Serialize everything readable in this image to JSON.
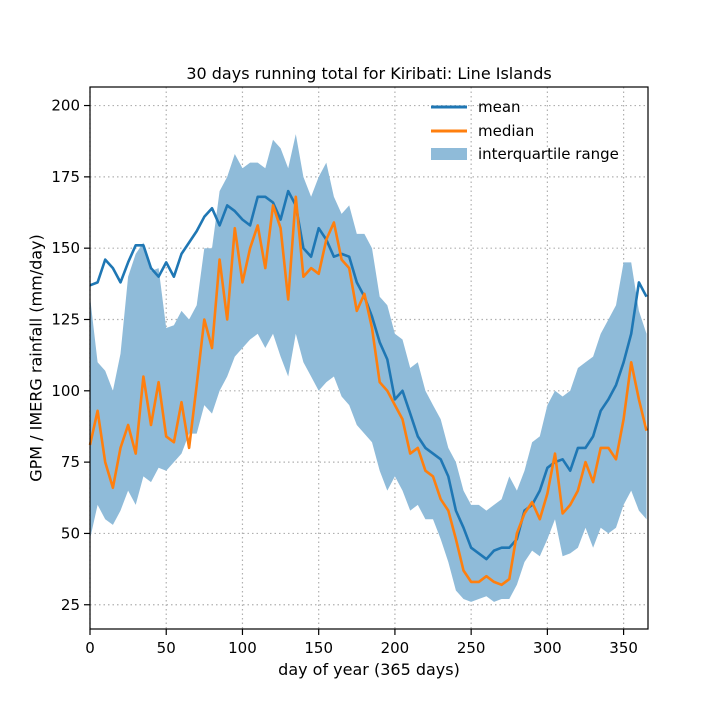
{
  "chart_data": {
    "type": "line",
    "title": "30 days running total for Kiribati: Line Islands",
    "xlabel": "day of year (365 days)",
    "ylabel": "GPM / IMERG rainfall (mm/day)",
    "xlim": [
      0,
      366
    ],
    "ylim": [
      16.5,
      206.5
    ],
    "xticks": [
      0,
      50,
      100,
      150,
      200,
      250,
      300,
      350
    ],
    "yticks": [
      25,
      50,
      75,
      100,
      125,
      150,
      175,
      200
    ],
    "grid": true,
    "legend_position": "top-right",
    "colors": {
      "mean": "#1f77b4",
      "median": "#ff7f0e",
      "iqr": "#8fbbd9"
    },
    "series": [
      {
        "name": "mean",
        "kind": "line",
        "x": [
          0,
          5,
          10,
          15,
          20,
          25,
          30,
          35,
          40,
          45,
          50,
          55,
          60,
          65,
          70,
          75,
          80,
          85,
          90,
          95,
          100,
          105,
          110,
          115,
          120,
          125,
          130,
          135,
          140,
          145,
          150,
          155,
          160,
          165,
          170,
          175,
          180,
          185,
          190,
          195,
          200,
          205,
          210,
          215,
          220,
          225,
          230,
          235,
          240,
          245,
          250,
          255,
          260,
          265,
          270,
          275,
          280,
          285,
          290,
          295,
          300,
          305,
          310,
          315,
          320,
          325,
          330,
          335,
          340,
          345,
          350,
          355,
          360,
          365
        ],
        "values": [
          137,
          138,
          146,
          143,
          138,
          145,
          151,
          151,
          143,
          140,
          145,
          140,
          148,
          152,
          156,
          161,
          164,
          158,
          165,
          163,
          160,
          158,
          168,
          168,
          166,
          160,
          170,
          165,
          150,
          147,
          157,
          153,
          147,
          148,
          147,
          138,
          133,
          126,
          117,
          111,
          97,
          100,
          92,
          84,
          80,
          78,
          76,
          70,
          58,
          52,
          45,
          43,
          41,
          44,
          45,
          45,
          48,
          58,
          60,
          65,
          73,
          75,
          76,
          72,
          80,
          80,
          84,
          93,
          97,
          102,
          110,
          120,
          138,
          133
        ]
      },
      {
        "name": "median",
        "kind": "line",
        "x": [
          0,
          5,
          10,
          15,
          20,
          25,
          30,
          35,
          40,
          45,
          50,
          55,
          60,
          65,
          70,
          75,
          80,
          85,
          90,
          95,
          100,
          105,
          110,
          115,
          120,
          125,
          130,
          135,
          140,
          145,
          150,
          155,
          160,
          165,
          170,
          175,
          180,
          185,
          190,
          195,
          200,
          205,
          210,
          215,
          220,
          225,
          230,
          235,
          240,
          245,
          250,
          255,
          260,
          265,
          270,
          275,
          280,
          285,
          290,
          295,
          300,
          305,
          310,
          315,
          320,
          325,
          330,
          335,
          340,
          345,
          350,
          355,
          360,
          365
        ],
        "values": [
          81,
          93,
          75,
          66,
          80,
          88,
          78,
          105,
          88,
          103,
          84,
          82,
          96,
          80,
          102,
          125,
          115,
          146,
          125,
          157,
          138,
          150,
          158,
          143,
          165,
          157,
          132,
          168,
          140,
          143,
          141,
          153,
          159,
          146,
          143,
          128,
          134,
          122,
          103,
          100,
          95,
          90,
          78,
          80,
          72,
          70,
          62,
          58,
          48,
          37,
          33,
          33,
          35,
          33,
          32,
          34,
          50,
          57,
          61,
          55,
          64,
          78,
          57,
          60,
          65,
          75,
          68,
          80,
          80,
          76,
          90,
          110,
          97,
          86
        ]
      },
      {
        "name": "interquartile range",
        "kind": "band",
        "x": [
          0,
          5,
          10,
          15,
          20,
          25,
          30,
          35,
          40,
          45,
          50,
          55,
          60,
          65,
          70,
          75,
          80,
          85,
          90,
          95,
          100,
          105,
          110,
          115,
          120,
          125,
          130,
          135,
          140,
          145,
          150,
          155,
          160,
          165,
          170,
          175,
          180,
          185,
          190,
          195,
          200,
          205,
          210,
          215,
          220,
          225,
          230,
          235,
          240,
          245,
          250,
          255,
          260,
          265,
          270,
          275,
          280,
          285,
          290,
          295,
          300,
          305,
          310,
          315,
          320,
          325,
          330,
          335,
          340,
          345,
          350,
          355,
          360,
          365
        ],
        "low": [
          48,
          60,
          55,
          53,
          58,
          65,
          60,
          70,
          68,
          73,
          72,
          75,
          78,
          85,
          85,
          95,
          92,
          100,
          105,
          112,
          115,
          118,
          120,
          115,
          120,
          112,
          105,
          120,
          110,
          105,
          100,
          103,
          105,
          98,
          95,
          88,
          85,
          82,
          72,
          65,
          70,
          65,
          58,
          60,
          55,
          55,
          48,
          40,
          30,
          27,
          26,
          27,
          28,
          26,
          27,
          27,
          32,
          40,
          44,
          42,
          48,
          55,
          42,
          43,
          45,
          52,
          45,
          52,
          50,
          52,
          60,
          65,
          58,
          55
        ],
        "high": [
          133,
          110,
          107,
          100,
          113,
          140,
          148,
          152,
          142,
          143,
          122,
          123,
          128,
          125,
          130,
          150,
          150,
          170,
          175,
          183,
          178,
          180,
          180,
          178,
          188,
          185,
          178,
          190,
          175,
          168,
          175,
          180,
          168,
          162,
          165,
          155,
          155,
          150,
          133,
          130,
          120,
          118,
          108,
          110,
          100,
          95,
          90,
          80,
          75,
          65,
          60,
          60,
          58,
          60,
          62,
          70,
          65,
          72,
          82,
          84,
          95,
          100,
          98,
          100,
          108,
          110,
          112,
          120,
          125,
          130,
          145,
          145,
          128,
          120
        ]
      }
    ]
  }
}
